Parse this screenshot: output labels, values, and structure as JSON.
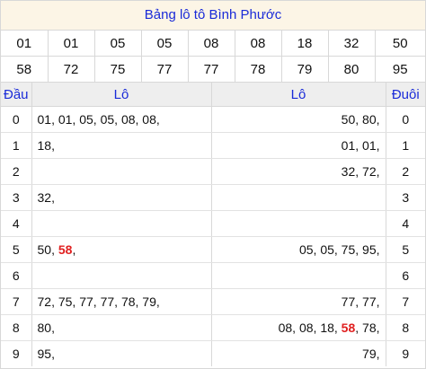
{
  "title": "Bảng lô tô Bình Phước",
  "prize_row1": [
    "01",
    "01",
    "05",
    "05",
    "08",
    "08",
    "18",
    "32",
    "50"
  ],
  "prize_row2": [
    "58",
    "72",
    "75",
    "77",
    "77",
    "78",
    "79",
    "80",
    "95"
  ],
  "colors": {
    "accent_blue": "#1a2bd8",
    "accent_red": "#e02020",
    "title_bg": "#fcf5e6",
    "header_bg": "#eeeeee"
  },
  "headers": {
    "dau": "Đầu",
    "lo_left": "Lô",
    "lo_right": "Lô",
    "duoi": "Đuôi"
  },
  "rows": [
    {
      "dau": "0",
      "left": [
        {
          "t": "01, "
        },
        {
          "t": "01, "
        },
        {
          "t": "05, "
        },
        {
          "t": "05, "
        },
        {
          "t": "08, "
        },
        {
          "t": "08,"
        }
      ],
      "right": [
        {
          "t": "50, "
        },
        {
          "t": "80,"
        }
      ],
      "duoi": "0"
    },
    {
      "dau": "1",
      "left": [
        {
          "t": "18,"
        }
      ],
      "right": [
        {
          "t": "01, "
        },
        {
          "t": "01,"
        }
      ],
      "duoi": "1"
    },
    {
      "dau": "2",
      "left": [],
      "right": [
        {
          "t": "32, "
        },
        {
          "t": "72,"
        }
      ],
      "duoi": "2"
    },
    {
      "dau": "3",
      "left": [
        {
          "t": "32,"
        }
      ],
      "right": [],
      "duoi": "3"
    },
    {
      "dau": "4",
      "left": [],
      "right": [],
      "duoi": "4"
    },
    {
      "dau": "5",
      "left": [
        {
          "t": "50, "
        },
        {
          "t": "58",
          "hl": true
        },
        {
          "t": ","
        }
      ],
      "right": [
        {
          "t": "05, "
        },
        {
          "t": "05, "
        },
        {
          "t": "75, "
        },
        {
          "t": "95,"
        }
      ],
      "duoi": "5"
    },
    {
      "dau": "6",
      "left": [],
      "right": [],
      "duoi": "6"
    },
    {
      "dau": "7",
      "left": [
        {
          "t": "72, "
        },
        {
          "t": "75, "
        },
        {
          "t": "77, "
        },
        {
          "t": "77, "
        },
        {
          "t": "78, "
        },
        {
          "t": "79,"
        }
      ],
      "right": [
        {
          "t": "77, "
        },
        {
          "t": "77,"
        }
      ],
      "duoi": "7"
    },
    {
      "dau": "8",
      "left": [
        {
          "t": "80,"
        }
      ],
      "right": [
        {
          "t": "08, "
        },
        {
          "t": "08, "
        },
        {
          "t": "18, "
        },
        {
          "t": "58",
          "hl": true
        },
        {
          "t": ", "
        },
        {
          "t": "78,"
        }
      ],
      "duoi": "8"
    },
    {
      "dau": "9",
      "left": [
        {
          "t": "95,"
        }
      ],
      "right": [
        {
          "t": "79,"
        }
      ],
      "duoi": "9"
    }
  ]
}
